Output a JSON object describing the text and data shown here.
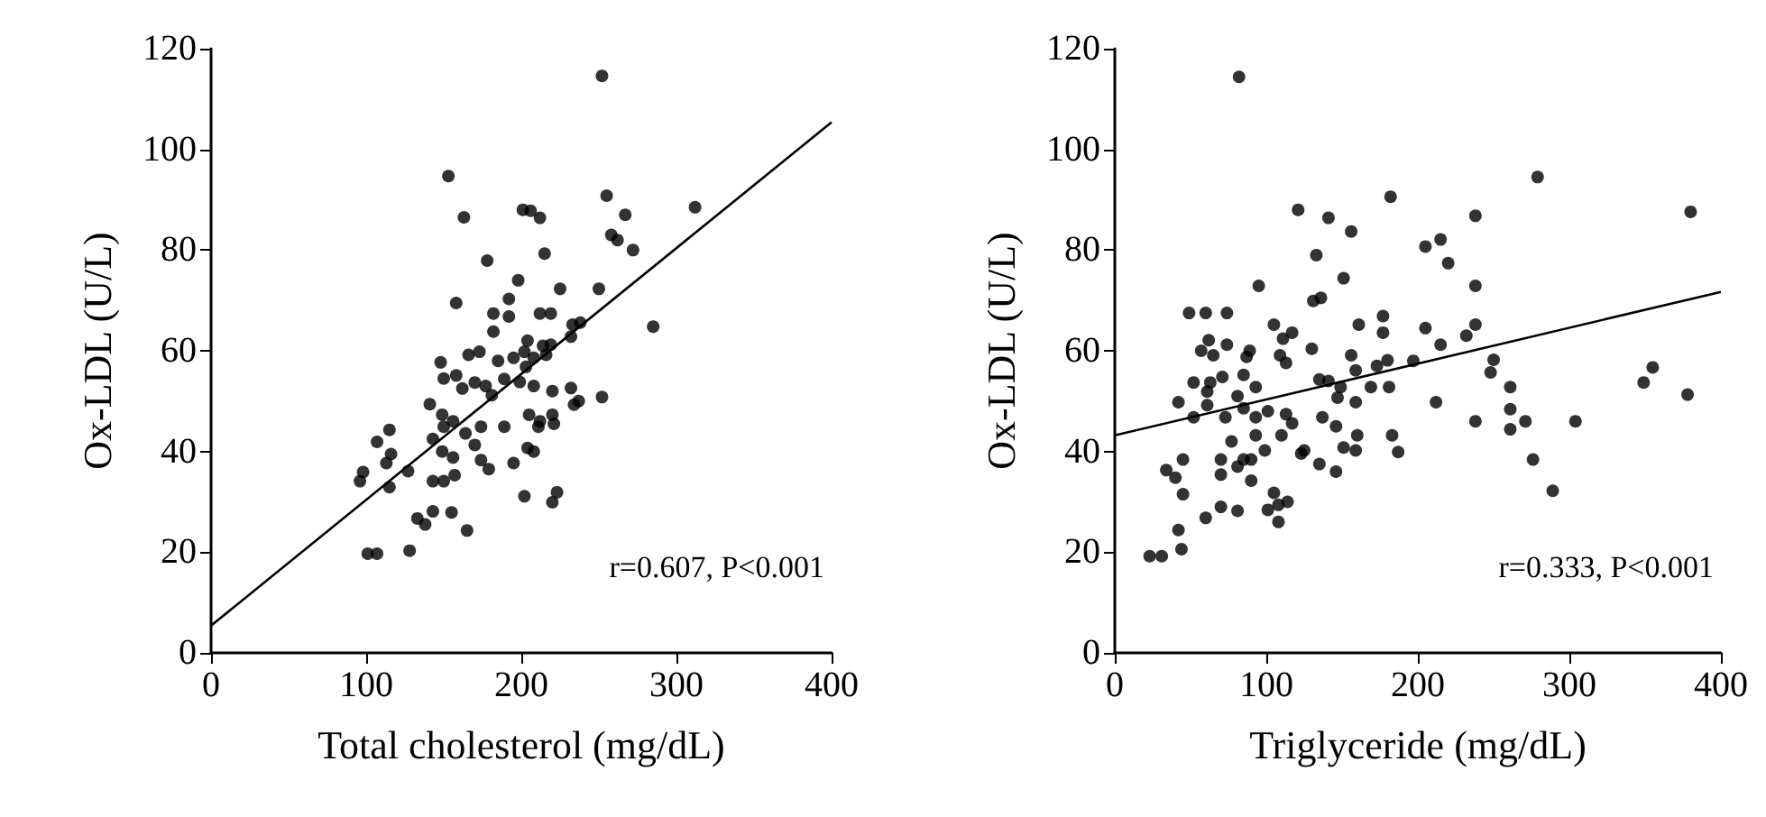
{
  "chart_data": [
    {
      "type": "scatter",
      "xlabel": "Total cholesterol (mg/dL)",
      "ylabel": "Ox-LDL (U/L)",
      "xlim": [
        0,
        400
      ],
      "ylim": [
        0,
        120
      ],
      "xticks": [
        0,
        100,
        200,
        300,
        400
      ],
      "yticks": [
        0,
        20,
        40,
        60,
        80,
        100,
        120
      ],
      "grid": false,
      "marker": "circle",
      "annotations": [
        "r=0.607, P<0.001"
      ],
      "series": [
        {
          "color": "#000000",
          "x": [
            252,
            153,
            255,
            163,
            201,
            206,
            212,
            267,
            258,
            262,
            272,
            312,
            215,
            178,
            198,
            192,
            225,
            250,
            158,
            182,
            212,
            219,
            192,
            182,
            233,
            238,
            232,
            285,
            204,
            202,
            214,
            219,
            166,
            173,
            185,
            195,
            203,
            208,
            216,
            148,
            150,
            158,
            162,
            170,
            177,
            181,
            189,
            199,
            208,
            220,
            232,
            237,
            234,
            252,
            141,
            149,
            156,
            164,
            174,
            189,
            205,
            212,
            220,
            221,
            150,
            143,
            149,
            156,
            170,
            174,
            204,
            208,
            211,
            115,
            107,
            116,
            113,
            127,
            98,
            96,
            115,
            143,
            150,
            157,
            179,
            195,
            202,
            223,
            220,
            133,
            138,
            143,
            155,
            165,
            101,
            107,
            128
          ],
          "values": [
            114.6,
            94.7,
            90.8,
            86.5,
            88,
            87.8,
            86.4,
            87,
            83,
            82,
            80,
            88.5,
            79.3,
            77.9,
            74,
            70.3,
            72.3,
            72.3,
            69.5,
            67.4,
            67.4,
            67.4,
            66.8,
            63.8,
            65.2,
            65.6,
            62.8,
            64.8,
            62,
            59.8,
            61,
            61.2,
            59.2,
            59.8,
            58,
            58.6,
            56.8,
            58.6,
            59.2,
            57.7,
            54.5,
            55.1,
            52.5,
            53.7,
            53,
            51.2,
            54.4,
            53.8,
            53,
            52,
            52.6,
            50,
            49.3,
            50.8,
            49.4,
            47.3,
            46,
            43.6,
            44.9,
            44.9,
            47.3,
            46,
            47.3,
            45.5,
            44.9,
            42.5,
            40,
            38.8,
            41.3,
            38.3,
            40.7,
            40,
            44.9,
            44.3,
            41.9,
            39.5,
            37.7,
            36.1,
            35.9,
            34.1,
            32.9,
            34.1,
            34.1,
            35.3,
            36.5,
            37.7,
            31.1,
            31.9,
            29.9,
            26.7,
            25.5,
            28.1,
            27.9,
            24.3,
            19.7,
            19.7,
            20.3
          ]
        },
        {
          "type": "line",
          "color": "#000000",
          "marker": "none",
          "line_style": "solid",
          "x": [
            0,
            400
          ],
          "values": [
            5.4,
            105.4
          ]
        }
      ]
    },
    {
      "type": "scatter",
      "xlabel": "Triglyceride (mg/dL)",
      "ylabel": "Ox-LDL (U/L)",
      "xlim": [
        0,
        400
      ],
      "ylim": [
        0,
        120
      ],
      "xticks": [
        0,
        100,
        200,
        300,
        400
      ],
      "yticks": [
        0,
        20,
        40,
        60,
        80,
        100,
        120
      ],
      "grid": false,
      "marker": "circle",
      "annotations": [
        "r=0.333, P<0.001"
      ],
      "series": [
        {
          "color": "#000000",
          "x": [
            82,
            279,
            182,
            121,
            141,
            380,
            238,
            156,
            205,
            215,
            220,
            133,
            95,
            151,
            131,
            136,
            238,
            49,
            60,
            74,
            105,
            117,
            111,
            161,
            177,
            177,
            205,
            238,
            232,
            215,
            62,
            74,
            57,
            65,
            87,
            89,
            130,
            109,
            113,
            156,
            159,
            173,
            180,
            197,
            250,
            52,
            63,
            71,
            61,
            85,
            81,
            93,
            135,
            141,
            149,
            147,
            169,
            181,
            248,
            261,
            261,
            261,
            349,
            355,
            378,
            42,
            52,
            61,
            73,
            85,
            93,
            101,
            113,
            117,
            137,
            146,
            159,
            212,
            238,
            271,
            304,
            77,
            93,
            99,
            85,
            110,
            125,
            123,
            151,
            159,
            160,
            183,
            187,
            70,
            81,
            90,
            70,
            90,
            135,
            146,
            34,
            40,
            45,
            45,
            276,
            289,
            105,
            114,
            108,
            60,
            70,
            81,
            101,
            108,
            42,
            44,
            23,
            31
          ],
          "values": [
            114.4,
            94.5,
            90.6,
            88,
            86.4,
            87.6,
            86.8,
            83.7,
            80.7,
            82.1,
            77.4,
            79,
            72.9,
            74.4,
            69.9,
            70.5,
            72.9,
            67.5,
            67.5,
            67.5,
            65.2,
            63.6,
            62.4,
            65.2,
            66.9,
            63.6,
            64.5,
            65.2,
            63,
            61.2,
            62.1,
            61.2,
            60,
            59.1,
            58.8,
            60,
            60.4,
            59.1,
            57.6,
            59.1,
            56.1,
            57,
            58.1,
            58,
            58.2,
            53.7,
            53.7,
            54.8,
            51.9,
            55.2,
            51,
            52.8,
            54.3,
            54,
            52.8,
            50.7,
            52.8,
            52.8,
            55.7,
            52.8,
            48.4,
            44.4,
            53.7,
            56.7,
            51.3,
            49.8,
            46.8,
            49.2,
            46.8,
            48.6,
            46.8,
            48,
            47.4,
            45.6,
            46.8,
            45,
            49.8,
            49.8,
            46,
            46,
            46,
            42,
            43.2,
            40.2,
            38.4,
            43.2,
            40.2,
            39.6,
            40.8,
            40.2,
            43.2,
            43.2,
            39.9,
            38.4,
            37,
            34.2,
            35.4,
            38.4,
            37.5,
            36,
            36.3,
            34.8,
            38.4,
            31.5,
            38.4,
            32.2,
            31.8,
            30,
            29.4,
            26.8,
            29,
            28.2,
            28.4,
            26,
            24.4,
            20.6,
            19.2,
            19.2
          ]
        },
        {
          "type": "line",
          "color": "#000000",
          "marker": "none",
          "line_style": "solid",
          "x": [
            0,
            400
          ],
          "values": [
            43.2,
            71.7
          ]
        }
      ]
    }
  ]
}
